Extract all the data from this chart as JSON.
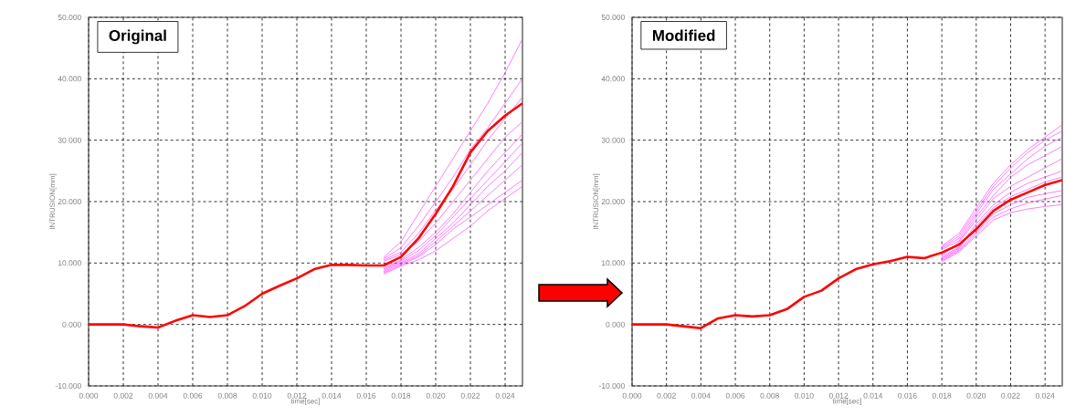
{
  "chart_data": [
    {
      "type": "line",
      "title": "Original",
      "xlabel": "time[sec]",
      "ylabel": "INTRUSION[mm]",
      "x": [
        0,
        0.002,
        0.003,
        0.004,
        0.005,
        0.006,
        0.007,
        0.008,
        0.009,
        0.01,
        0.011,
        0.012,
        0.013,
        0.014,
        0.015,
        0.016,
        0.017,
        0.018,
        0.019,
        0.02,
        0.021,
        0.022,
        0.023,
        0.024,
        0.025
      ],
      "series": [
        {
          "color": "#ff44ff",
          "values": [
            null,
            null,
            null,
            null,
            null,
            null,
            null,
            null,
            null,
            null,
            null,
            null,
            null,
            null,
            null,
            null,
            10.9,
            13.5,
            18,
            22.5,
            27,
            31.5,
            36,
            41,
            46.5
          ]
        },
        {
          "color": "#ff44ff",
          "values": [
            null,
            null,
            null,
            null,
            null,
            null,
            null,
            null,
            null,
            null,
            null,
            null,
            null,
            null,
            null,
            null,
            10.7,
            12.5,
            16,
            20,
            24,
            28.5,
            32,
            36,
            40
          ]
        },
        {
          "color": "#ff44ff",
          "values": [
            null,
            null,
            null,
            null,
            null,
            null,
            null,
            null,
            null,
            null,
            null,
            null,
            null,
            null,
            null,
            null,
            10.5,
            11.8,
            14.8,
            18.6,
            22,
            26,
            30,
            33.5,
            37
          ]
        },
        {
          "color": "#ff44ff",
          "values": [
            null,
            null,
            null,
            null,
            null,
            null,
            null,
            null,
            null,
            null,
            null,
            null,
            null,
            null,
            null,
            null,
            10.3,
            11.4,
            13.5,
            16.5,
            20,
            23.5,
            27,
            30.5,
            33
          ]
        },
        {
          "color": "#ff44ff",
          "values": [
            null,
            null,
            null,
            null,
            null,
            null,
            null,
            null,
            null,
            null,
            null,
            null,
            null,
            null,
            null,
            null,
            9.2,
            10.5,
            12.5,
            15,
            18,
            21.5,
            25,
            28,
            31
          ]
        },
        {
          "color": "#ff44ff",
          "values": [
            null,
            null,
            null,
            null,
            null,
            null,
            null,
            null,
            null,
            null,
            null,
            null,
            null,
            null,
            null,
            null,
            9.0,
            10.3,
            12,
            14.5,
            17.5,
            20.5,
            23.5,
            26.5,
            29.5
          ]
        },
        {
          "color": "#ff44ff",
          "values": [
            null,
            null,
            null,
            null,
            null,
            null,
            null,
            null,
            null,
            null,
            null,
            null,
            null,
            null,
            null,
            null,
            8.8,
            10.1,
            11.5,
            14,
            16.5,
            19.5,
            22.5,
            25,
            28
          ]
        },
        {
          "color": "#ff44ff",
          "values": [
            null,
            null,
            null,
            null,
            null,
            null,
            null,
            null,
            null,
            null,
            null,
            null,
            null,
            null,
            null,
            null,
            8.6,
            9.9,
            11.2,
            13.5,
            16,
            18.5,
            21,
            23.5,
            26
          ]
        },
        {
          "color": "#ff44ff",
          "values": [
            null,
            null,
            null,
            null,
            null,
            null,
            null,
            null,
            null,
            null,
            null,
            null,
            null,
            null,
            null,
            null,
            8.4,
            9.7,
            11,
            13,
            15.5,
            17.5,
            19.5,
            21.5,
            23.5
          ]
        },
        {
          "color": "#ff44ff",
          "values": [
            null,
            null,
            null,
            null,
            null,
            null,
            null,
            null,
            null,
            null,
            null,
            null,
            null,
            null,
            null,
            null,
            8.2,
            9.5,
            10.5,
            12,
            14,
            16,
            18.5,
            20.5,
            22.5
          ]
        },
        {
          "color": "#ff0000",
          "values": [
            0,
            0,
            -0.3,
            -0.5,
            0.6,
            1.5,
            1.2,
            1.5,
            3,
            5,
            6.3,
            7.5,
            9,
            9.7,
            9.7,
            9.6,
            9.6,
            11,
            14,
            18,
            22.5,
            28,
            31.5,
            34,
            36
          ]
        }
      ],
      "xlim": [
        0,
        0.025
      ],
      "xticks": [
        {
          "value": 0,
          "label": "0.000"
        },
        {
          "value": 0.002,
          "label": "0.002"
        },
        {
          "value": 0.004,
          "label": "0.004"
        },
        {
          "value": 0.006,
          "label": "0.006"
        },
        {
          "value": 0.008,
          "label": "0.008"
        },
        {
          "value": 0.01,
          "label": "0.010"
        },
        {
          "value": 0.012,
          "label": "0.012"
        },
        {
          "value": 0.014,
          "label": "0.014"
        },
        {
          "value": 0.016,
          "label": "0.016"
        },
        {
          "value": 0.018,
          "label": "0.018"
        },
        {
          "value": 0.02,
          "label": "0.020"
        },
        {
          "value": 0.022,
          "label": "0.022"
        },
        {
          "value": 0.024,
          "label": "0.024"
        }
      ],
      "ylim": [
        -10,
        50
      ],
      "yticks": [
        {
          "value": -10,
          "label": "-10.000"
        },
        {
          "value": 0,
          "label": "0.000"
        },
        {
          "value": 10,
          "label": "10.000"
        },
        {
          "value": 20,
          "label": "20.000"
        },
        {
          "value": 30,
          "label": "30.000"
        },
        {
          "value": 40,
          "label": "40.000"
        },
        {
          "value": 50,
          "label": "50.000"
        }
      ],
      "grid": true
    },
    {
      "type": "line",
      "title": "Modified",
      "xlabel": "time[sec]",
      "ylabel": "INTRUSION[mm]",
      "x": [
        0,
        0.002,
        0.003,
        0.004,
        0.005,
        0.006,
        0.007,
        0.008,
        0.009,
        0.01,
        0.011,
        0.012,
        0.013,
        0.014,
        0.015,
        0.016,
        0.017,
        0.018,
        0.019,
        0.02,
        0.021,
        0.022,
        0.023,
        0.024,
        0.025
      ],
      "series": [
        {
          "color": "#ff44ff",
          "values": [
            null,
            null,
            null,
            null,
            null,
            null,
            null,
            null,
            null,
            null,
            null,
            null,
            null,
            null,
            null,
            null,
            null,
            12.8,
            14.8,
            19,
            23,
            26,
            28.5,
            30.5,
            32.5
          ]
        },
        {
          "color": "#ff44ff",
          "values": [
            null,
            null,
            null,
            null,
            null,
            null,
            null,
            null,
            null,
            null,
            null,
            null,
            null,
            null,
            null,
            null,
            null,
            12.6,
            14.4,
            18.5,
            22.5,
            25.5,
            28,
            30,
            31.5
          ]
        },
        {
          "color": "#ff44ff",
          "values": [
            null,
            null,
            null,
            null,
            null,
            null,
            null,
            null,
            null,
            null,
            null,
            null,
            null,
            null,
            null,
            null,
            null,
            12.4,
            14,
            18,
            22,
            24.5,
            27,
            29,
            30.5
          ]
        },
        {
          "color": "#ff44ff",
          "values": [
            null,
            null,
            null,
            null,
            null,
            null,
            null,
            null,
            null,
            null,
            null,
            null,
            null,
            null,
            null,
            null,
            null,
            12.2,
            13.6,
            17.5,
            21,
            24,
            26,
            27.5,
            29
          ]
        },
        {
          "color": "#ff44ff",
          "values": [
            null,
            null,
            null,
            null,
            null,
            null,
            null,
            null,
            null,
            null,
            null,
            null,
            null,
            null,
            null,
            null,
            null,
            11.2,
            13.4,
            17,
            20.5,
            22.5,
            24,
            25.5,
            27
          ]
        },
        {
          "color": "#ff44ff",
          "values": [
            null,
            null,
            null,
            null,
            null,
            null,
            null,
            null,
            null,
            null,
            null,
            null,
            null,
            null,
            null,
            null,
            null,
            11.0,
            12.6,
            16.4,
            19.5,
            21.5,
            23,
            24,
            25
          ]
        },
        {
          "color": "#ff44ff",
          "values": [
            null,
            null,
            null,
            null,
            null,
            null,
            null,
            null,
            null,
            null,
            null,
            null,
            null,
            null,
            null,
            null,
            null,
            10.8,
            12.4,
            16,
            19,
            20.8,
            22,
            23.2,
            24
          ]
        },
        {
          "color": "#ff44ff",
          "values": [
            null,
            null,
            null,
            null,
            null,
            null,
            null,
            null,
            null,
            null,
            null,
            null,
            null,
            null,
            null,
            null,
            null,
            10.6,
            12.2,
            15,
            18,
            19.5,
            20.7,
            21.3,
            21.8
          ]
        },
        {
          "color": "#ff44ff",
          "values": [
            null,
            null,
            null,
            null,
            null,
            null,
            null,
            null,
            null,
            null,
            null,
            null,
            null,
            null,
            null,
            null,
            null,
            10.4,
            12,
            14.7,
            17.5,
            18.8,
            19.8,
            20.4,
            21
          ]
        },
        {
          "color": "#ff44ff",
          "values": [
            null,
            null,
            null,
            null,
            null,
            null,
            null,
            null,
            null,
            null,
            null,
            null,
            null,
            null,
            null,
            null,
            null,
            10.2,
            11.8,
            14.4,
            17,
            18.2,
            18.8,
            19.2,
            19.5
          ]
        },
        {
          "color": "#ff0000",
          "values": [
            0,
            0,
            -0.3,
            -0.6,
            1,
            1.5,
            1.3,
            1.5,
            2.5,
            4.5,
            5.5,
            7.5,
            9,
            9.8,
            10.3,
            11,
            10.8,
            11.7,
            13,
            15.5,
            18.5,
            20.3,
            21.5,
            22.7,
            23.5
          ]
        }
      ],
      "xlim": [
        0,
        0.025
      ],
      "xticks": [
        {
          "value": 0,
          "label": "0.000"
        },
        {
          "value": 0.002,
          "label": "0.002"
        },
        {
          "value": 0.004,
          "label": "0.004"
        },
        {
          "value": 0.006,
          "label": "0.006"
        },
        {
          "value": 0.008,
          "label": "0.008"
        },
        {
          "value": 0.01,
          "label": "0.010"
        },
        {
          "value": 0.012,
          "label": "0.012"
        },
        {
          "value": 0.014,
          "label": "0.014"
        },
        {
          "value": 0.016,
          "label": "0.016"
        },
        {
          "value": 0.018,
          "label": "0.018"
        },
        {
          "value": 0.02,
          "label": "0.020"
        },
        {
          "value": 0.022,
          "label": "0.022"
        },
        {
          "value": 0.024,
          "label": "0.024"
        }
      ],
      "ylim": [
        -10,
        50
      ],
      "yticks": [
        {
          "value": -10,
          "label": "-10.000"
        },
        {
          "value": 0,
          "label": "0.000"
        },
        {
          "value": 10,
          "label": "10.000"
        },
        {
          "value": 20,
          "label": "20.000"
        },
        {
          "value": 30,
          "label": "30.000"
        },
        {
          "value": 40,
          "label": "40.000"
        },
        {
          "value": 50,
          "label": "50.000"
        }
      ],
      "grid": true
    }
  ]
}
